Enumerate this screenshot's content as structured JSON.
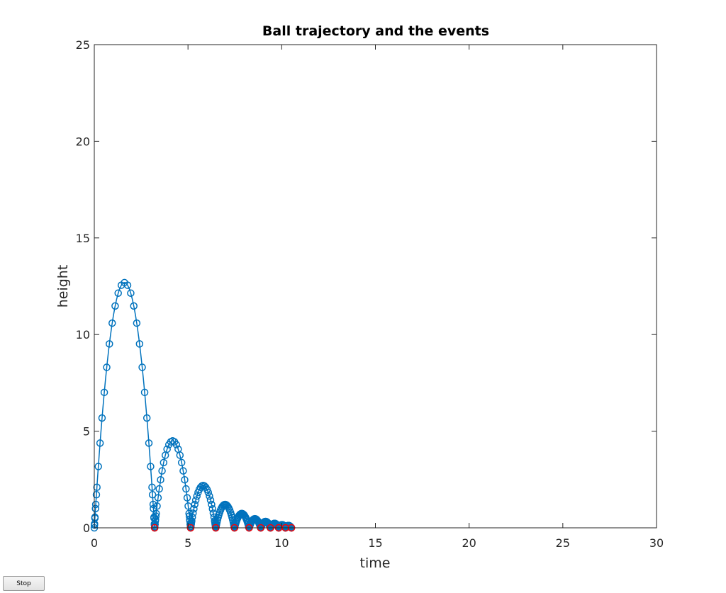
{
  "controls": {
    "stop_label": "Stop"
  },
  "chart_data": {
    "type": "scatter",
    "title": "Ball trajectory and the events",
    "xlabel": "time",
    "ylabel": "height",
    "xlim": [
      0,
      30
    ],
    "ylim": [
      0,
      25
    ],
    "xticks": [
      0,
      5,
      10,
      15,
      20,
      25,
      30
    ],
    "yticks": [
      0,
      5,
      10,
      15,
      20,
      25
    ],
    "grid": false,
    "legend": "none",
    "colors": {
      "trajectory": "#0072BD",
      "events": "#FF0000",
      "axes": "#262626"
    },
    "series": [
      {
        "kind": "line-with-circle-markers",
        "bounces": [
          {
            "t0": 0.0,
            "t1": 3.22,
            "peak": 12.69
          },
          {
            "t0": 3.22,
            "t1": 5.14,
            "peak": 4.5
          },
          {
            "t0": 5.14,
            "t1": 6.48,
            "peak": 2.19
          },
          {
            "t0": 6.48,
            "t1": 7.48,
            "peak": 1.21
          },
          {
            "t0": 7.48,
            "t1": 8.26,
            "peak": 0.74
          },
          {
            "t0": 8.26,
            "t1": 8.88,
            "peak": 0.47
          },
          {
            "t0": 8.88,
            "t1": 9.4,
            "peak": 0.33
          },
          {
            "t0": 9.4,
            "t1": 9.84,
            "peak": 0.23
          },
          {
            "t0": 9.84,
            "t1": 10.2,
            "peak": 0.16
          },
          {
            "t0": 10.2,
            "t1": 10.52,
            "peak": 0.12
          }
        ]
      },
      {
        "kind": "event-markers",
        "x": [
          3.22,
          5.14,
          6.48,
          7.48,
          8.26,
          8.88,
          9.4,
          9.84,
          10.2,
          10.52
        ],
        "y": [
          0,
          0,
          0,
          0,
          0,
          0,
          0,
          0,
          0,
          0
        ]
      }
    ]
  }
}
